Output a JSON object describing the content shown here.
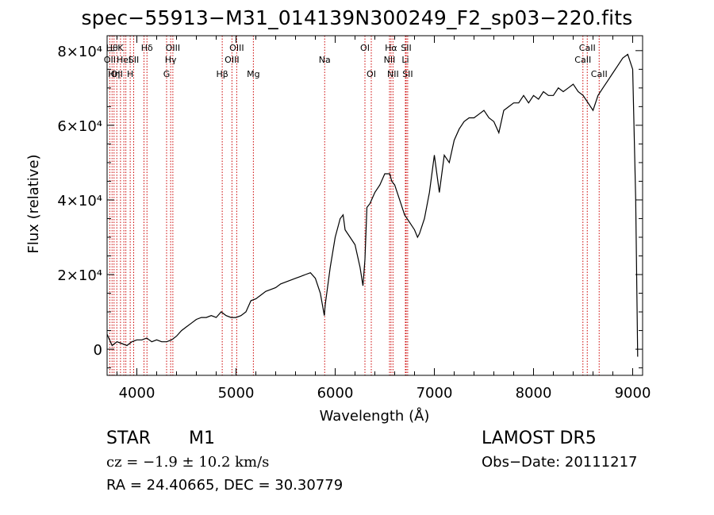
{
  "chart_data": {
    "type": "line",
    "title": "spec−55913−M31_014139N300249_F2_sp03−220.fits",
    "xlabel": "Wavelength (Å)",
    "ylabel": "Flux (relative)",
    "xlim": [
      3700,
      9100
    ],
    "ylim": [
      -7000,
      84000
    ],
    "x_ticks": [
      4000,
      5000,
      6000,
      7000,
      8000,
      9000
    ],
    "y_ticks": [
      {
        "value": 0,
        "label": "0"
      },
      {
        "value": 20000,
        "label": "2×10⁴"
      },
      {
        "value": 40000,
        "label": "4×10⁴"
      },
      {
        "value": 60000,
        "label": "6×10⁴"
      },
      {
        "value": 80000,
        "label": "8×10⁴"
      }
    ],
    "line_color": "#000000",
    "marker_color": "#cc0000",
    "series": [
      {
        "x": [
          3700,
          3750,
          3800,
          3850,
          3900,
          3950,
          4000,
          4050,
          4100,
          4150,
          4200,
          4250,
          4300,
          4350,
          4400,
          4450,
          4500,
          4550,
          4600,
          4650,
          4700,
          4750,
          4800,
          4850,
          4900,
          4950,
          5000,
          5050,
          5100,
          5150,
          5200,
          5250,
          5300,
          5350,
          5400,
          5450,
          5500,
          5550,
          5600,
          5650,
          5700,
          5750,
          5800,
          5850,
          5890,
          5900,
          5950,
          6000,
          6050,
          6080,
          6100,
          6150,
          6200,
          6250,
          6280,
          6300,
          6320,
          6350,
          6400,
          6450,
          6500,
          6550,
          6570,
          6600,
          6650,
          6700,
          6750,
          6800,
          6830,
          6850,
          6900,
          6950,
          7000,
          7050,
          7100,
          7150,
          7200,
          7250,
          7300,
          7350,
          7400,
          7450,
          7500,
          7550,
          7600,
          7650,
          7700,
          7750,
          7800,
          7850,
          7900,
          7950,
          8000,
          8050,
          8100,
          8150,
          8200,
          8250,
          8300,
          8350,
          8400,
          8450,
          8500,
          8550,
          8600,
          8650,
          8700,
          8750,
          8800,
          8850,
          8900,
          8950,
          9000,
          9030,
          9050
        ],
        "y": [
          4000,
          1000,
          2000,
          1500,
          1000,
          2000,
          2500,
          2500,
          3000,
          2000,
          2500,
          2000,
          2000,
          2500,
          3500,
          5000,
          6000,
          7000,
          8000,
          8500,
          8500,
          9000,
          8500,
          10000,
          9000,
          8500,
          8500,
          9000,
          10000,
          13000,
          13500,
          14500,
          15500,
          16000,
          16500,
          17500,
          18000,
          18500,
          19000,
          19500,
          20000,
          20500,
          19000,
          15000,
          9000,
          12000,
          22000,
          30000,
          35000,
          36000,
          32000,
          30000,
          28000,
          22000,
          17000,
          24000,
          38000,
          39000,
          42000,
          44000,
          47000,
          47000,
          45000,
          44000,
          40000,
          36000,
          34000,
          32000,
          30000,
          31000,
          35000,
          42000,
          52000,
          42000,
          52000,
          50000,
          56000,
          59000,
          61000,
          62000,
          62000,
          63000,
          64000,
          62000,
          61000,
          58000,
          64000,
          65000,
          66000,
          66000,
          68000,
          66000,
          68000,
          67000,
          69000,
          68000,
          68000,
          70000,
          69000,
          70000,
          71000,
          69000,
          68000,
          66000,
          64000,
          68000,
          70000,
          72000,
          74000,
          76000,
          78000,
          79000,
          75000,
          40000,
          -2000
        ]
      }
    ],
    "line_markers": [
      {
        "wavelength": 3727,
        "label": "OII",
        "row": 2
      },
      {
        "wavelength": 3750,
        "label": "Hθ",
        "row": 1
      },
      {
        "wavelength": 3770,
        "label": "Hη",
        "row": 3
      },
      {
        "wavelength": 3798,
        "label": "OII",
        "row": 3
      },
      {
        "wavelength": 3835,
        "label": "K",
        "row": 1
      },
      {
        "wavelength": 3869,
        "label": "HeI",
        "row": 2
      },
      {
        "wavelength": 3889,
        "label": "",
        "row": 0
      },
      {
        "wavelength": 3933,
        "label": "H",
        "row": 3
      },
      {
        "wavelength": 3968,
        "label": "SII",
        "row": 2
      },
      {
        "wavelength": 4072,
        "label": "",
        "row": 0
      },
      {
        "wavelength": 4102,
        "label": "Hδ",
        "row": 1
      },
      {
        "wavelength": 4300,
        "label": "G",
        "row": 3
      },
      {
        "wavelength": 4341,
        "label": "Hγ",
        "row": 2
      },
      {
        "wavelength": 4363,
        "label": "OIII",
        "row": 1
      },
      {
        "wavelength": 4861,
        "label": "Hβ",
        "row": 3
      },
      {
        "wavelength": 4959,
        "label": "OIII",
        "row": 2
      },
      {
        "wavelength": 5007,
        "label": "OIII",
        "row": 1
      },
      {
        "wavelength": 5175,
        "label": "Mg",
        "row": 3
      },
      {
        "wavelength": 5894,
        "label": "Na",
        "row": 2
      },
      {
        "wavelength": 6300,
        "label": "OI",
        "row": 1
      },
      {
        "wavelength": 6364,
        "label": "OI",
        "row": 3
      },
      {
        "wavelength": 6548,
        "label": "NII",
        "row": 2
      },
      {
        "wavelength": 6563,
        "label": "Hα",
        "row": 1
      },
      {
        "wavelength": 6583,
        "label": "NII",
        "row": 3
      },
      {
        "wavelength": 6708,
        "label": "Li",
        "row": 2
      },
      {
        "wavelength": 6716,
        "label": "SII",
        "row": 1
      },
      {
        "wavelength": 6731,
        "label": "SII",
        "row": 3
      },
      {
        "wavelength": 8498,
        "label": "CaII",
        "row": 2
      },
      {
        "wavelength": 8542,
        "label": "CaII",
        "row": 1
      },
      {
        "wavelength": 8662,
        "label": "CaII",
        "row": 3
      }
    ]
  },
  "footer": {
    "class": "STAR",
    "subclass": "M1",
    "survey": "LAMOST  DR5",
    "cz_text": "cz = −1.9 ± 10.2 km/s",
    "obs_date": "Obs−Date: 20111217",
    "coords": "RA =  24.40665, DEC =  30.30779"
  }
}
